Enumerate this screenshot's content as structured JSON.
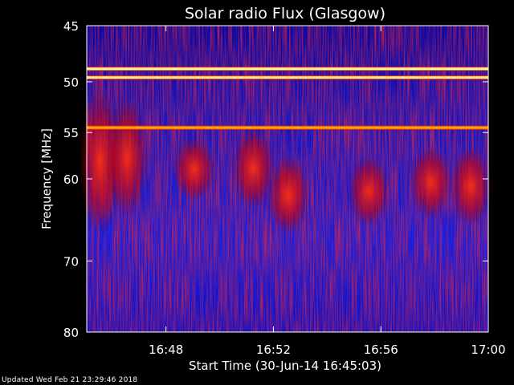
{
  "chart_data": {
    "type": "heatmap",
    "title": "Solar radio Flux (Glasgow)",
    "xlabel": "Start Time (30-Jun-14 16:45:03)",
    "ylabel": "Frequency [MHz]",
    "x_ticks": [
      "16:48",
      "16:52",
      "16:56",
      "17:00"
    ],
    "x_tick_minutes": [
      2.95,
      6.95,
      10.95,
      14.95
    ],
    "xlim_minutes": [
      0,
      14.95
    ],
    "y_ticks": [
      45,
      50,
      55,
      60,
      70,
      80
    ],
    "ylim": [
      45,
      80
    ],
    "y_scale": "log",
    "colormap": [
      "#000070",
      "#1010e0",
      "#4040ff",
      "#a00000",
      "#ff2000",
      "#ffa000",
      "#ffffa0"
    ],
    "bands": [
      {
        "frequency": 48.8,
        "intensity": 1.0
      },
      {
        "frequency": 49.6,
        "intensity": 0.9
      },
      {
        "frequency": 54.5,
        "intensity": 0.95
      }
    ],
    "bursts": [
      {
        "time": 0.5,
        "frequency_from": 51,
        "frequency_to": 66
      },
      {
        "time": 1.5,
        "frequency_from": 52,
        "frequency_to": 64
      },
      {
        "time": 4.0,
        "frequency_from": 56,
        "frequency_to": 62
      },
      {
        "time": 6.2,
        "frequency_from": 55,
        "frequency_to": 63
      },
      {
        "time": 7.5,
        "frequency_from": 58,
        "frequency_to": 66
      },
      {
        "time": 10.5,
        "frequency_from": 58,
        "frequency_to": 65
      },
      {
        "time": 12.8,
        "frequency_from": 57,
        "frequency_to": 64
      },
      {
        "time": 14.3,
        "frequency_from": 57,
        "frequency_to": 65
      }
    ]
  },
  "footer": "Updated Wed Feb 21 23:29:46 2018"
}
